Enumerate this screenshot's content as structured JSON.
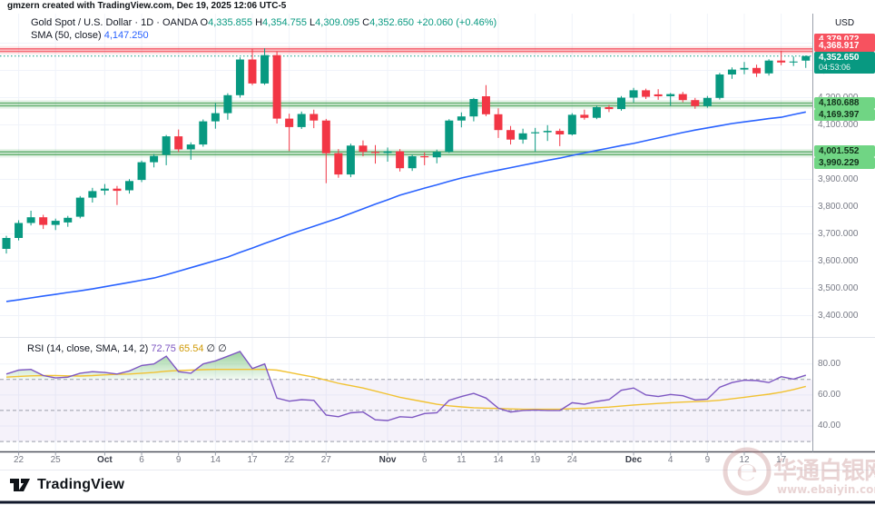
{
  "meta": {
    "attribution": "gmzern created with TradingView.com, Dec 19, 2025 12:06 UTC-5"
  },
  "colors": {
    "up": "#089981",
    "down": "#f23645",
    "sma50": "#2962ff",
    "rsi_line": "#7e57c2",
    "rsi_ma_line": "#f1c232",
    "zone_red": "#f23645",
    "zone_green": "#3d9e4b",
    "grid": "#f0f3fa",
    "axis_text": "#787b86",
    "text": "#131722",
    "label_red_bg": "#f7525f",
    "label_green_bg": "#70d584",
    "label_current_bg": "#089981",
    "watermark": "#c79090",
    "footer_bar": "#11182b",
    "separator": "#50535e"
  },
  "symbol_legend": {
    "title": "Gold Spot / U.S. Dollar",
    "dot": "·",
    "interval": "1D",
    "exchange": "OANDA",
    "o_label": "O",
    "o": "4,335.855",
    "h_label": "H",
    "h": "4,354.755",
    "l_label": "L",
    "l": "4,309.095",
    "c_label": "C",
    "c": "4,352.650",
    "change": "+20.060 (+0.46%)",
    "sma_label": "SMA (50, close)",
    "sma_value": "4,147.250"
  },
  "rsi_legend": {
    "label": "RSI (14, close, SMA, 14, 2)",
    "rsi_value": "72.75",
    "sma_value": "65.54",
    "hidden_marks": "∅ ∅"
  },
  "price_axis": {
    "currency": "USD",
    "ticks": [
      {
        "label": "4,300.000",
        "price": 4300
      },
      {
        "label": "4,200.000",
        "price": 4200
      },
      {
        "label": "4,100.000",
        "price": 4100
      },
      {
        "label": "3,900.000",
        "price": 3900
      },
      {
        "label": "3,800.000",
        "price": 3800
      },
      {
        "label": "3,700.000",
        "price": 3700
      },
      {
        "label": "3,600.000",
        "price": 3600
      },
      {
        "label": "3,500.000",
        "price": 3500
      },
      {
        "label": "3,400.000",
        "price": 3400
      }
    ],
    "labels": [
      {
        "text": "4,379.072",
        "type": "red",
        "top": 37
      },
      {
        "text": "4,368.917",
        "type": "red",
        "top": 44
      },
      {
        "text": "4,352.650",
        "type": "current",
        "countdown": "04:53:06",
        "top": 57
      },
      {
        "text": "4,180.688",
        "type": "green",
        "top": 107
      },
      {
        "text": "4,169.397",
        "type": "green",
        "top": 120
      },
      {
        "text": "4,001.552",
        "type": "green",
        "top": 160
      },
      {
        "text": "3,990.229",
        "type": "green",
        "top": 173
      }
    ]
  },
  "rsi_axis": {
    "ticks": [
      {
        "label": "80.00",
        "value": 80
      },
      {
        "label": "60.00",
        "value": 60
      },
      {
        "label": "40.00",
        "value": 40
      }
    ]
  },
  "time_axis": {
    "ticks": [
      {
        "label": "22",
        "i": 1,
        "major": false
      },
      {
        "label": "25",
        "i": 4,
        "major": false
      },
      {
        "label": "Oct",
        "i": 8,
        "major": true
      },
      {
        "label": "6",
        "i": 11,
        "major": false
      },
      {
        "label": "9",
        "i": 14,
        "major": false
      },
      {
        "label": "14",
        "i": 17,
        "major": false
      },
      {
        "label": "17",
        "i": 20,
        "major": false
      },
      {
        "label": "22",
        "i": 23,
        "major": false
      },
      {
        "label": "27",
        "i": 26,
        "major": false
      },
      {
        "label": "Nov",
        "i": 31,
        "major": true
      },
      {
        "label": "6",
        "i": 34,
        "major": false
      },
      {
        "label": "11",
        "i": 37,
        "major": false
      },
      {
        "label": "14",
        "i": 40,
        "major": false
      },
      {
        "label": "19",
        "i": 43,
        "major": false
      },
      {
        "label": "24",
        "i": 46,
        "major": false
      },
      {
        "label": "Dec",
        "i": 51,
        "major": true
      },
      {
        "label": "4",
        "i": 54,
        "major": false
      },
      {
        "label": "9",
        "i": 57,
        "major": false
      },
      {
        "label": "12",
        "i": 60,
        "major": false
      },
      {
        "label": "17",
        "i": 63,
        "major": false
      }
    ]
  },
  "chart_data": [
    {
      "type": "candlestick",
      "title": "Gold Spot / U.S. Dollar, 1D, OANDA",
      "ylim": [
        3380,
        4430
      ],
      "grid_prices": [
        3400,
        3500,
        3600,
        3700,
        3800,
        3900,
        4000,
        4100,
        4200,
        4300,
        4400
      ],
      "current_price": 4352.65,
      "prev_close": 4332.59,
      "zones": [
        {
          "kind": "resistance",
          "top": 4379.072,
          "bottom": 4368.917,
          "color": "red"
        },
        {
          "kind": "support",
          "top": 4180.688,
          "bottom": 4169.397,
          "color": "green"
        },
        {
          "kind": "support",
          "top": 4001.552,
          "bottom": 3990.229,
          "color": "green"
        }
      ],
      "dates": [
        "Sep 19",
        "Sep 22",
        "Sep 23",
        "Sep 24",
        "Sep 25",
        "Sep 26",
        "Sep 29",
        "Sep 30",
        "Oct 1",
        "Oct 2",
        "Oct 3",
        "Oct 6",
        "Oct 7",
        "Oct 8",
        "Oct 9",
        "Oct 10",
        "Oct 13",
        "Oct 14",
        "Oct 15",
        "Oct 16",
        "Oct 17",
        "Oct 20",
        "Oct 21",
        "Oct 22",
        "Oct 23",
        "Oct 24",
        "Oct 27",
        "Oct 28",
        "Oct 29",
        "Oct 30",
        "Oct 31",
        "Nov 3",
        "Nov 4",
        "Nov 5",
        "Nov 6",
        "Nov 7",
        "Nov 10",
        "Nov 11",
        "Nov 12",
        "Nov 13",
        "Nov 14",
        "Nov 17",
        "Nov 18",
        "Nov 19",
        "Nov 20",
        "Nov 21",
        "Nov 24",
        "Nov 25",
        "Nov 26",
        "Nov 27",
        "Nov 28",
        "Dec 1",
        "Dec 2",
        "Dec 3",
        "Dec 4",
        "Dec 5",
        "Dec 8",
        "Dec 9",
        "Dec 10",
        "Dec 11",
        "Dec 12",
        "Dec 15",
        "Dec 16",
        "Dec 17",
        "Dec 18",
        "Dec 19"
      ],
      "ohlc": [
        [
          3645,
          3693,
          3628,
          3685
        ],
        [
          3685,
          3750,
          3676,
          3740
        ],
        [
          3740,
          3785,
          3731,
          3761
        ],
        [
          3761,
          3770,
          3718,
          3733
        ],
        [
          3733,
          3756,
          3714,
          3748
        ],
        [
          3742,
          3766,
          3726,
          3759
        ],
        [
          3763,
          3839,
          3757,
          3833
        ],
        [
          3833,
          3869,
          3815,
          3857
        ],
        [
          3859,
          3883,
          3843,
          3866
        ],
        [
          3866,
          3876,
          3806,
          3858
        ],
        [
          3860,
          3901,
          3848,
          3894
        ],
        [
          3898,
          3969,
          3890,
          3963
        ],
        [
          3963,
          3993,
          3944,
          3986
        ],
        [
          3990,
          4063,
          3952,
          4058
        ],
        [
          4058,
          4083,
          4000,
          4010
        ],
        [
          4010,
          4036,
          3972,
          4028
        ],
        [
          4028,
          4120,
          4020,
          4113
        ],
        [
          4113,
          4180,
          4086,
          4143
        ],
        [
          4143,
          4216,
          4119,
          4209
        ],
        [
          4209,
          4348,
          4200,
          4340
        ],
        [
          4340,
          4379,
          4246,
          4252
        ],
        [
          4252,
          4381,
          4247,
          4356
        ],
        [
          4356,
          4370,
          4105,
          4123
        ],
        [
          4123,
          4141,
          4004,
          4092
        ],
        [
          4092,
          4149,
          4085,
          4140
        ],
        [
          4140,
          4156,
          4088,
          4116
        ],
        [
          4116,
          4122,
          3886,
          3996
        ],
        [
          3996,
          4011,
          3906,
          3918
        ],
        [
          3918,
          4031,
          3908,
          4024
        ],
        [
          4024,
          4043,
          3985,
          4001
        ],
        [
          4001,
          4026,
          3958,
          3997
        ],
        [
          3997,
          4017,
          3965,
          4003
        ],
        [
          4003,
          4011,
          3929,
          3941
        ],
        [
          3941,
          3991,
          3931,
          3985
        ],
        [
          3985,
          3999,
          3952,
          3981
        ],
        [
          3981,
          4009,
          3959,
          4001
        ],
        [
          4001,
          4121,
          3997,
          4116
        ],
        [
          4116,
          4146,
          4091,
          4131
        ],
        [
          4131,
          4199,
          4113,
          4195
        ],
        [
          4205,
          4246,
          4132,
          4139
        ],
        [
          4139,
          4161,
          4052,
          4081
        ],
        [
          4081,
          4096,
          4028,
          4046
        ],
        [
          4046,
          4086,
          4031,
          4069
        ],
        [
          4069,
          4089,
          4002,
          4073
        ],
        [
          4073,
          4099,
          4041,
          4078
        ],
        [
          4078,
          4086,
          4022,
          4065
        ],
        [
          4065,
          4143,
          4061,
          4137
        ],
        [
          4137,
          4156,
          4119,
          4126
        ],
        [
          4126,
          4171,
          4121,
          4165
        ],
        [
          4165,
          4173,
          4147,
          4158
        ],
        [
          4158,
          4206,
          4152,
          4200
        ],
        [
          4200,
          4236,
          4182,
          4227
        ],
        [
          4227,
          4233,
          4195,
          4203
        ],
        [
          4212,
          4231,
          4192,
          4205
        ],
        [
          4205,
          4217,
          4170,
          4213
        ],
        [
          4213,
          4221,
          4183,
          4191
        ],
        [
          4191,
          4199,
          4159,
          4169
        ],
        [
          4169,
          4206,
          4163,
          4199
        ],
        [
          4199,
          4291,
          4193,
          4285
        ],
        [
          4285,
          4311,
          4269,
          4303
        ],
        [
          4303,
          4331,
          4286,
          4309
        ],
        [
          4309,
          4321,
          4276,
          4289
        ],
        [
          4289,
          4341,
          4281,
          4336
        ],
        [
          4336,
          4372,
          4319,
          4329
        ],
        [
          4329,
          4351,
          4316,
          4332.59
        ],
        [
          4335.855,
          4354.755,
          4309.095,
          4352.65
        ]
      ],
      "sma50": [
        3452,
        3458,
        3465,
        3472,
        3478,
        3485,
        3491,
        3498,
        3506,
        3514,
        3522,
        3530,
        3538,
        3550,
        3563,
        3576,
        3589,
        3602,
        3615,
        3632,
        3648,
        3665,
        3681,
        3698,
        3713,
        3728,
        3743,
        3758,
        3775,
        3792,
        3809,
        3825,
        3842,
        3855,
        3868,
        3880,
        3893,
        3905,
        3915,
        3925,
        3934,
        3943,
        3952,
        3961,
        3970,
        3978,
        3988,
        3997,
        4006,
        4015,
        4024,
        4032,
        4042,
        4052,
        4062,
        4072,
        4081,
        4089,
        4097,
        4105,
        4111,
        4117,
        4123,
        4128,
        4138,
        4147.25
      ]
    },
    {
      "type": "line",
      "title": "RSI (14, close, SMA, 14, 2)",
      "ylim": [
        24,
        96
      ],
      "yticks": [
        40,
        60,
        80
      ],
      "levels": {
        "overbought": 70,
        "middle": 50,
        "oversold": 30
      },
      "current": {
        "rsi": 72.75,
        "rsi_sma": 65.54
      },
      "series": [
        {
          "name": "RSI",
          "values": [
            73.5,
            76,
            76.5,
            72.5,
            71,
            71.5,
            74,
            75,
            74.5,
            73.5,
            75.5,
            79,
            80,
            85,
            75,
            74,
            80,
            82,
            85,
            88,
            77,
            80,
            58,
            56,
            57,
            56.5,
            47,
            46,
            48.5,
            49,
            44,
            43.5,
            46,
            45.5,
            48,
            48.5,
            56.5,
            59,
            61,
            58,
            51.5,
            49,
            50,
            50.3,
            50,
            50,
            55,
            54,
            55.8,
            57,
            63,
            64.5,
            60,
            59,
            60.3,
            59.5,
            56.8,
            57.3,
            65,
            68,
            69.5,
            69.3,
            68,
            71.8,
            70.2,
            72.75
          ]
        },
        {
          "name": "SMA of RSI",
          "values": [
            71.5,
            72,
            72.3,
            72.5,
            72.5,
            72.3,
            72.2,
            72.5,
            73,
            73.3,
            73.5,
            74,
            74.5,
            75.3,
            75.8,
            76,
            76.3,
            76.5,
            76.5,
            76.5,
            76.5,
            76.5,
            76,
            74.5,
            73,
            71.5,
            69.5,
            67.5,
            66,
            64.5,
            62.5,
            60.5,
            58.5,
            57,
            55.5,
            54,
            53,
            52.3,
            51.8,
            51.5,
            51.3,
            51,
            50.8,
            50.8,
            50.8,
            50.9,
            51.2,
            51.5,
            51.8,
            52.2,
            52.8,
            53.5,
            54,
            54.5,
            55,
            55.4,
            55.7,
            56,
            56.6,
            57.5,
            58.5,
            59.5,
            60.5,
            61.8,
            63.5,
            65.54
          ]
        }
      ]
    }
  ],
  "watermark": {
    "line1": "华通白银网",
    "line2": "www.ebaiyin.com"
  },
  "footer": {
    "brand": "TradingView"
  }
}
